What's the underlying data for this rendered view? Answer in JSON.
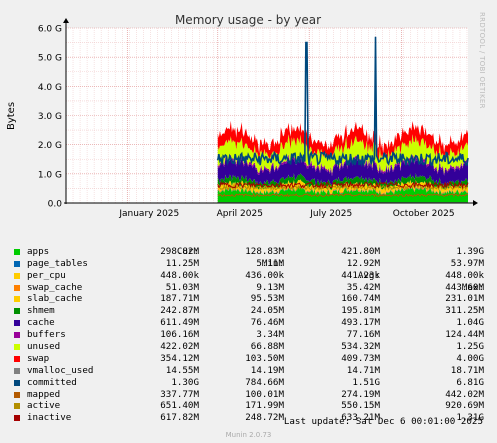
{
  "chart_data": {
    "type": "area",
    "title": "Memory usage - by year",
    "ylabel": "Bytes",
    "ylim": [
      0,
      6
    ],
    "yunit": "G",
    "y_ticks": [
      "0.0",
      "1.0 G",
      "2.0 G",
      "3.0 G",
      "4.0 G",
      "5.0 G",
      "6.0 G"
    ],
    "x_ticks": [
      "January 2025",
      "April 2025",
      "July 2025",
      "October 2025"
    ],
    "x_range": [
      "2024-11-01",
      "2025-12-06"
    ],
    "data_start": "2025-04-01",
    "spikes": [
      {
        "date": "2025-06-28",
        "value_g": 5.5
      },
      {
        "date": "2025-09-05",
        "value_g": 5.7
      }
    ],
    "grid": true,
    "stack_order": [
      "apps",
      "page_tables",
      "per_cpu",
      "swap_cache",
      "slab_cache",
      "shmem",
      "cache",
      "buffers",
      "unused",
      "swap"
    ],
    "lines": [
      "vmalloc_used",
      "committed",
      "mapped",
      "active",
      "inactive"
    ],
    "legend_header": {
      "cur": "Cur:",
      "min": "Min:",
      "avg": "Avg:",
      "max": "Max:"
    },
    "series": [
      {
        "name": "apps",
        "color": "#00cc00",
        "cur": "298.82M",
        "min": "128.83M",
        "avg": "421.80M",
        "max": "1.39G"
      },
      {
        "name": "page_tables",
        "color": "#0066b3",
        "cur": "11.25M",
        "min": "5.11M",
        "avg": "12.92M",
        "max": "53.97M"
      },
      {
        "name": "per_cpu",
        "color": "#ffcc00",
        "cur": "448.00k",
        "min": "436.00k",
        "avg": "441.23k",
        "max": "448.00k"
      },
      {
        "name": "swap_cache",
        "color": "#ff8000",
        "cur": "51.03M",
        "min": "9.13M",
        "avg": "35.42M",
        "max": "443.60M"
      },
      {
        "name": "slab_cache",
        "color": "#ffcc00",
        "cur": "187.71M",
        "min": "95.53M",
        "avg": "160.74M",
        "max": "231.01M"
      },
      {
        "name": "shmem",
        "color": "#008f00",
        "cur": "242.87M",
        "min": "24.05M",
        "avg": "195.81M",
        "max": "311.25M"
      },
      {
        "name": "cache",
        "color": "#330099",
        "cur": "611.49M",
        "min": "76.46M",
        "avg": "493.17M",
        "max": "1.04G"
      },
      {
        "name": "buffers",
        "color": "#990099",
        "cur": "106.16M",
        "min": "3.34M",
        "avg": "77.16M",
        "max": "124.44M"
      },
      {
        "name": "unused",
        "color": "#ccff00",
        "cur": "422.02M",
        "min": "66.88M",
        "avg": "534.32M",
        "max": "1.25G"
      },
      {
        "name": "swap",
        "color": "#ff0000",
        "cur": "354.12M",
        "min": "103.50M",
        "avg": "409.73M",
        "max": "4.00G"
      },
      {
        "name": "vmalloc_used",
        "color": "#808080",
        "cur": "14.55M",
        "min": "14.19M",
        "avg": "14.71M",
        "max": "18.71M"
      },
      {
        "name": "committed",
        "color": "#00487d",
        "cur": "1.30G",
        "min": "784.66M",
        "avg": "1.51G",
        "max": "6.81G"
      },
      {
        "name": "mapped",
        "color": "#b35a00",
        "cur": "337.77M",
        "min": "100.01M",
        "avg": "274.19M",
        "max": "442.02M"
      },
      {
        "name": "active",
        "color": "#b38f00",
        "cur": "651.40M",
        "min": "171.99M",
        "avg": "550.15M",
        "max": "920.69M"
      },
      {
        "name": "inactive",
        "color": "#a50000",
        "cur": "617.82M",
        "min": "248.72M",
        "avg": "633.21M",
        "max": "1.31G"
      }
    ]
  },
  "last_update": "Last update: Sat Dec  6 00:01:00 2025",
  "footer": "Munin 2.0.73",
  "side_text": "RRDTOOL / TOBI OETIKER"
}
